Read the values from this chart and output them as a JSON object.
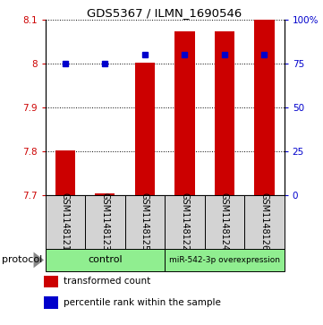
{
  "title": "GDS5367 / ILMN_1690546",
  "samples": [
    "GSM1148121",
    "GSM1148123",
    "GSM1148125",
    "GSM1148122",
    "GSM1148124",
    "GSM1148126"
  ],
  "bar_values": [
    7.802,
    7.703,
    8.002,
    8.073,
    8.073,
    8.1
  ],
  "bar_base": 7.7,
  "percentile_values": [
    75,
    75,
    80,
    80,
    80,
    80
  ],
  "ylim_left": [
    7.7,
    8.1
  ],
  "ylim_right": [
    0,
    100
  ],
  "yticks_left": [
    7.7,
    7.8,
    7.9,
    8.0,
    8.1
  ],
  "ytick_labels_left": [
    "7.7",
    "7.8",
    "7.9",
    "8",
    "8.1"
  ],
  "yticks_right": [
    0,
    25,
    50,
    75,
    100
  ],
  "ytick_labels_right": [
    "0",
    "25",
    "50",
    "75",
    "100%"
  ],
  "bar_color": "#cc0000",
  "dot_color": "#0000cc",
  "group1_label": "control",
  "group2_label": "miR-542-3p overexpression",
  "group_color": "#90ee90",
  "protocol_label": "protocol",
  "legend1_color": "#cc0000",
  "legend1_label": "transformed count",
  "legend2_color": "#0000cc",
  "legend2_label": "percentile rank within the sample",
  "sample_box_color": "#d3d3d3",
  "bar_width": 0.5
}
